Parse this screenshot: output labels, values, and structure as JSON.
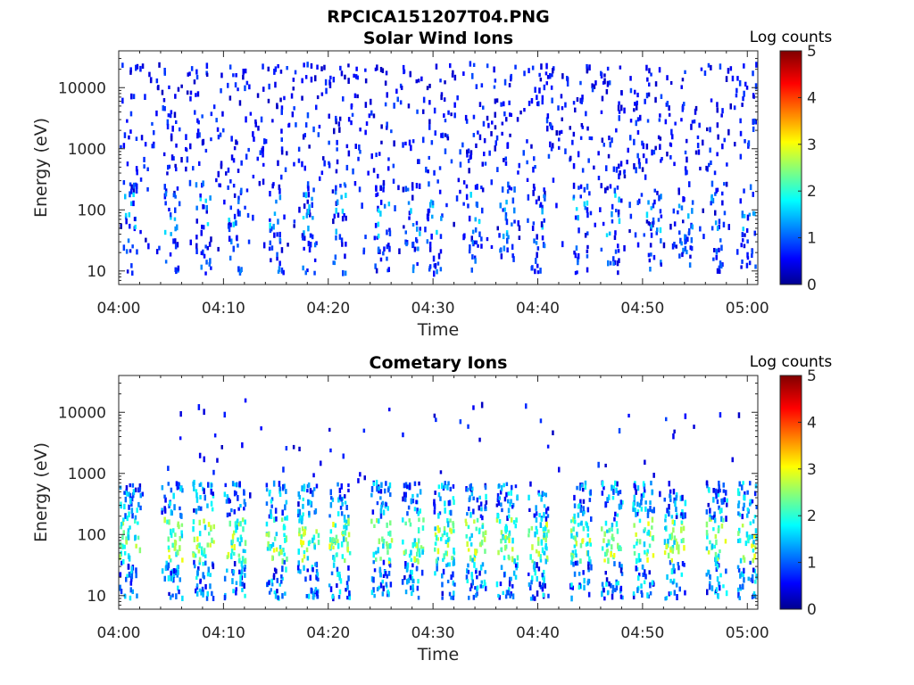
{
  "figure": {
    "title": "RPCICA151207T04.PNG"
  },
  "chart_data": [
    {
      "type": "heatmap",
      "title": "Solar Wind Ions",
      "xlabel": "Time",
      "ylabel": "Energy (eV)",
      "x_ticks": [
        "04:00",
        "04:10",
        "04:20",
        "04:30",
        "04:40",
        "04:50",
        "05:00"
      ],
      "xlim": [
        "04:00",
        "05:01"
      ],
      "y_scale": "log",
      "y_ticks": [
        10,
        100,
        1000,
        10000
      ],
      "y_tick_labels": [
        "10",
        "100",
        "1000",
        "10000"
      ],
      "ylim": [
        6,
        40000
      ],
      "colorbar": {
        "label": "Log counts",
        "range": [
          0,
          5
        ],
        "ticks": [
          "0",
          "1",
          "2",
          "3",
          "4",
          "5"
        ],
        "colormap": "jet"
      },
      "description_of_cells": "sparse single-count pixels at 1000-30000 eV; vertical bursts of 1-2 log counts at 10-300 eV",
      "burst_times": [
        "04:01",
        "04:05",
        "04:08",
        "04:11",
        "04:15",
        "04:18",
        "04:21",
        "04:25",
        "04:28",
        "04:30",
        "04:34",
        "04:37",
        "04:40",
        "04:44",
        "04:47",
        "04:51",
        "04:54",
        "04:57",
        "05:00"
      ]
    },
    {
      "type": "heatmap",
      "title": "Cometary Ions",
      "xlabel": "Time",
      "ylabel": "Energy (eV)",
      "x_ticks": [
        "04:00",
        "04:10",
        "04:20",
        "04:30",
        "04:40",
        "04:50",
        "05:00"
      ],
      "xlim": [
        "04:00",
        "05:01"
      ],
      "y_scale": "log",
      "y_ticks": [
        10,
        100,
        1000,
        10000
      ],
      "y_tick_labels": [
        "10",
        "100",
        "1000",
        "10000"
      ],
      "ylim": [
        6,
        40000
      ],
      "colorbar": {
        "label": "Log counts",
        "range": [
          0,
          5
        ],
        "ticks": [
          "0",
          "1",
          "2",
          "3",
          "4",
          "5"
        ],
        "colormap": "jet"
      },
      "description_of_cells": "periodic vertical bursts of 1-3 log counts between 10 and 1000 eV, sparse counts above 1000 eV",
      "burst_times": [
        "04:01",
        "04:05",
        "04:08",
        "04:11",
        "04:15",
        "04:18",
        "04:21",
        "04:25",
        "04:28",
        "04:31",
        "04:34",
        "04:37",
        "04:40",
        "04:44",
        "04:47",
        "04:50",
        "04:53",
        "04:57",
        "05:00"
      ]
    }
  ]
}
